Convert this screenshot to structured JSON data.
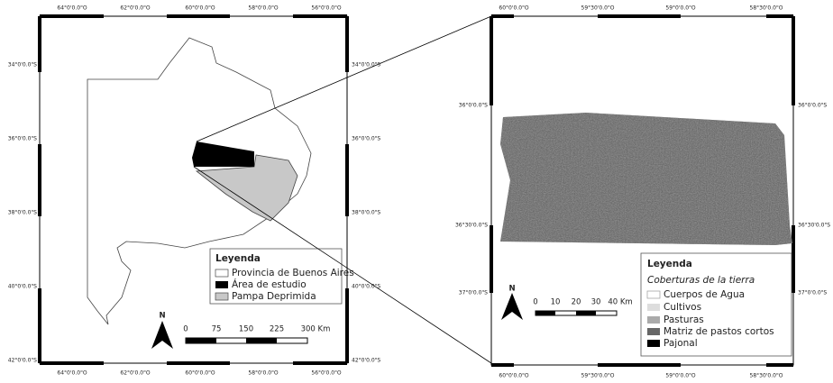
{
  "left_map": {
    "lon_labels": [
      "64°0'0.0\"O",
      "62°0'0.0\"O",
      "60°0'0.0\"O",
      "58°0'0.0\"O",
      "56°0'0.0\"O"
    ],
    "lat_labels": [
      "34°0'0.0\"S",
      "36°0'0.0\"S",
      "38°0'0.0\"S",
      "40°0'0.0\"S",
      "42°0'0.0\"S"
    ],
    "legend": {
      "title": "Leyenda",
      "items": [
        "Provincia de Buenos Aires",
        "Área de estudio",
        "Pampa Deprimida"
      ]
    },
    "north": "N",
    "scale": [
      "0",
      "75",
      "150",
      "225",
      "300 Km"
    ]
  },
  "right_map": {
    "lon_labels": [
      "60°0'0.0\"O",
      "59°30'0.0\"O",
      "59°0'0.0\"O",
      "58°30'0.0\"O"
    ],
    "lat_labels": [
      "36°0'0.0\"S",
      "36°30'0.0\"S",
      "37°0'0.0\"S"
    ],
    "legend": {
      "title": "Leyenda",
      "subtitle": "Coberturas de la tierra",
      "items": [
        "Cuerpos de Agua",
        "Cultivos",
        "Pasturas",
        "Matriz de pastos cortos",
        "Pajonal"
      ]
    },
    "north": "N",
    "scale": [
      "0",
      "10",
      "20",
      "30",
      "40 Km"
    ]
  }
}
